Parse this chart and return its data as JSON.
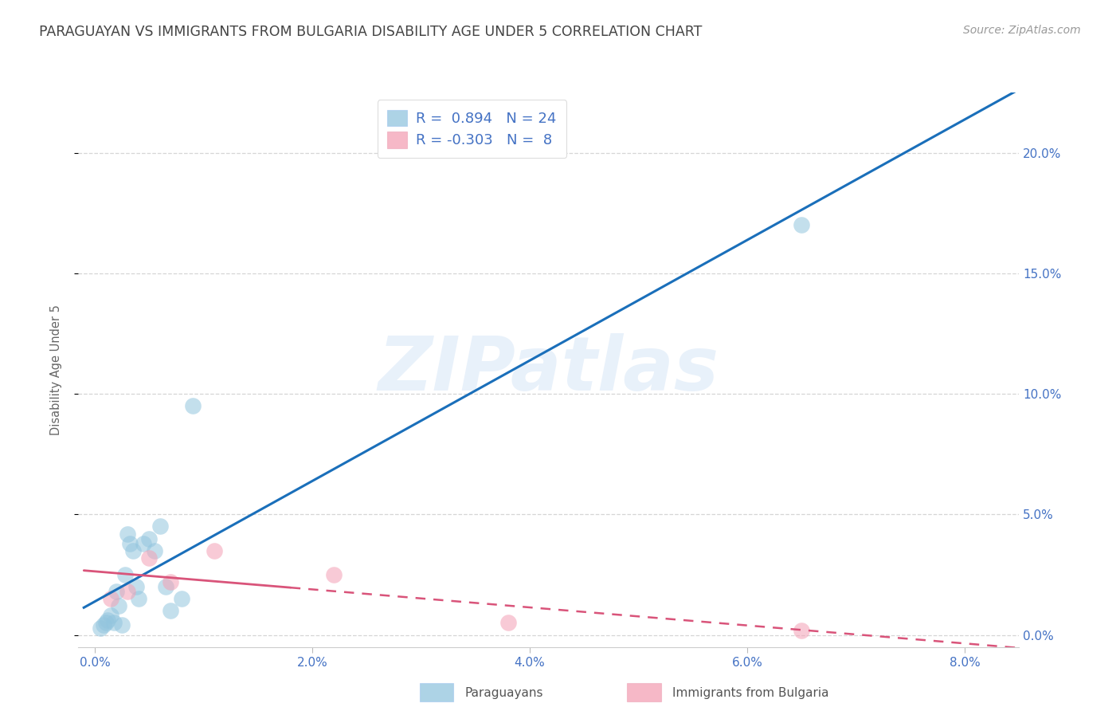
{
  "title": "PARAGUAYAN VS IMMIGRANTS FROM BULGARIA DISABILITY AGE UNDER 5 CORRELATION CHART",
  "source": "Source: ZipAtlas.com",
  "ylabel": "Disability Age Under 5",
  "watermark_text": "ZIPatlas",
  "blue_r": 0.894,
  "blue_n": 24,
  "pink_r": -0.303,
  "pink_n": 8,
  "xlim": [
    -0.15,
    8.5
  ],
  "ylim": [
    -0.5,
    22.5
  ],
  "yticks": [
    0,
    5,
    10,
    15,
    20
  ],
  "ytick_labels": [
    "0.0%",
    "5.0%",
    "10.0%",
    "15.0%",
    "20.0%"
  ],
  "xticks": [
    0,
    2,
    4,
    6,
    8
  ],
  "xtick_labels": [
    "0.0%",
    "2.0%",
    "4.0%",
    "6.0%",
    "8.0%"
  ],
  "grid_color": "#cccccc",
  "background_color": "#ffffff",
  "blue_scatter_color": "#92c5de",
  "blue_line_color": "#1a6fba",
  "pink_scatter_color": "#f4a0b5",
  "pink_line_color": "#d9547a",
  "title_color": "#444444",
  "axis_tick_color": "#4472c4",
  "ylabel_color": "#666666",
  "blue_scatter_x": [
    0.05,
    0.08,
    0.1,
    0.12,
    0.15,
    0.18,
    0.2,
    0.22,
    0.25,
    0.28,
    0.3,
    0.32,
    0.35,
    0.38,
    0.4,
    0.45,
    0.5,
    0.55,
    0.6,
    0.65,
    0.7,
    0.8,
    0.9,
    6.5
  ],
  "blue_scatter_y": [
    0.3,
    0.4,
    0.5,
    0.6,
    0.8,
    0.5,
    1.8,
    1.2,
    0.4,
    2.5,
    4.2,
    3.8,
    3.5,
    2.0,
    1.5,
    3.8,
    4.0,
    3.5,
    4.5,
    2.0,
    1.0,
    1.5,
    9.5,
    17.0
  ],
  "pink_scatter_x": [
    0.15,
    0.3,
    0.5,
    0.7,
    1.1,
    2.2,
    3.8,
    6.5
  ],
  "pink_scatter_y": [
    1.5,
    1.8,
    3.2,
    2.2,
    3.5,
    2.5,
    0.5,
    0.2
  ],
  "blue_trendline_x0": -0.1,
  "blue_trendline_x1": 8.5,
  "pink_solid_x0": -0.1,
  "pink_solid_x1": 1.8,
  "pink_dashed_x0": 1.8,
  "pink_dashed_x1": 8.5,
  "legend_label_blue": "Paraguayans",
  "legend_label_pink": "Immigrants from Bulgaria",
  "title_fontsize": 12.5,
  "source_fontsize": 10,
  "axis_label_fontsize": 10.5,
  "tick_fontsize": 11,
  "legend_fontsize": 13
}
